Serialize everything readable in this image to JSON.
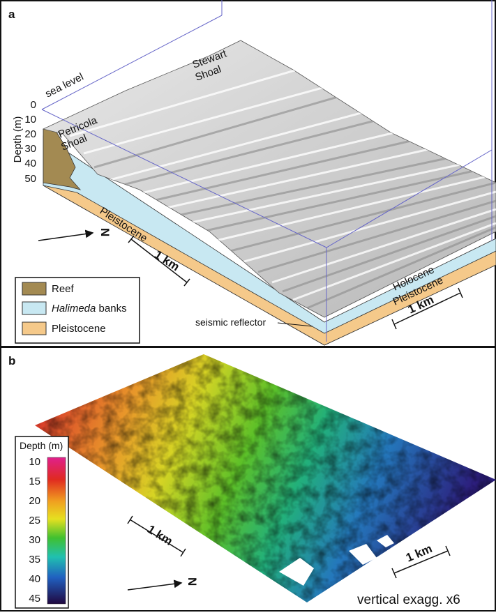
{
  "panel_a": {
    "label": "a",
    "sea_level": "sea level",
    "stewart": [
      "Stewart",
      "Shoal"
    ],
    "petricola": [
      "Petricola",
      "Shoal"
    ],
    "depth_axis": {
      "title": "Depth (m)",
      "ticks": [
        "0",
        "10",
        "20",
        "30",
        "40",
        "50"
      ]
    },
    "pleistocene_front": "Pleistocene",
    "scale_front": "1 km",
    "scale_right": "1 km",
    "north": "N",
    "holocene": "Holocene",
    "pleistocene_right": "Pleistocene",
    "seismic": "seismic reflector",
    "legend": [
      {
        "label": "Reef"
      },
      {
        "italic": "Halimeda",
        "label": " banks"
      },
      {
        "label": "Pleistocene"
      }
    ]
  },
  "panel_b": {
    "label": "b",
    "colorbar": {
      "title": "Depth (m)",
      "ticks": [
        "10",
        "15",
        "20",
        "25",
        "30",
        "35",
        "40",
        "45"
      ]
    },
    "scale_left": "1 km",
    "scale_right": "1 km",
    "north": "N",
    "exaggeration": "vertical exagg. x6"
  }
}
